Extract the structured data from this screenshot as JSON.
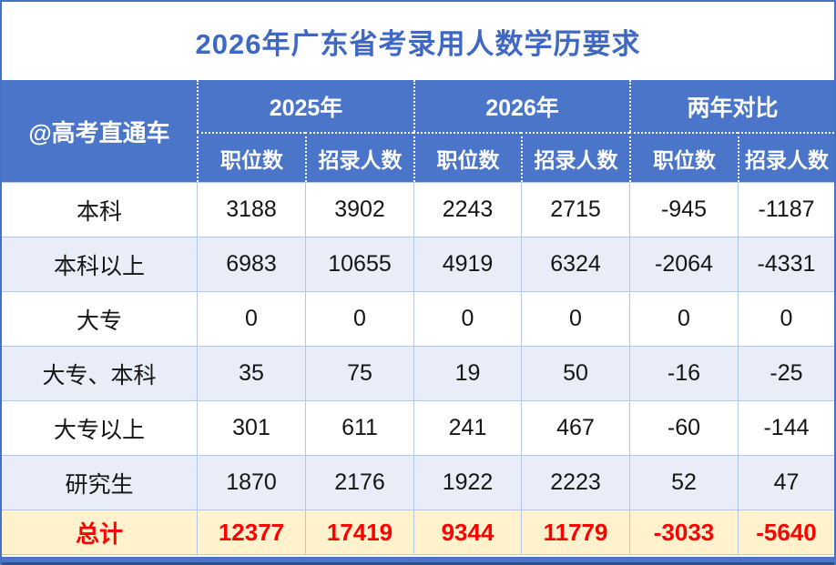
{
  "title": "2026年广东省考录用人数学历要求",
  "colors": {
    "header_bg": "#4A75C9",
    "title_text": "#3E68C3",
    "alt_row_bg": "#E9EDF7",
    "total_bg": "#FFF2CC",
    "total_text": "#FE0000",
    "grid_line": "#B4C7E7",
    "outer_border": "#4472C4",
    "bottom_edge": "#30508F"
  },
  "chart_data": {
    "type": "table",
    "title": "2026年广东省考录用人数学历要求",
    "corner_label": "@高考直通车",
    "column_groups": [
      "2025年",
      "2026年",
      "两年对比"
    ],
    "sub_headers": [
      "职位数",
      "招录人数",
      "职位数",
      "招录人数",
      "职位数",
      "招录人数"
    ],
    "row_labels": [
      "本科",
      "本科以上",
      "大专",
      "大专、本科",
      "大专以上",
      "研究生"
    ],
    "rows": [
      [
        3188,
        3902,
        2243,
        2715,
        -945,
        -1187
      ],
      [
        6983,
        10655,
        4919,
        6324,
        -2064,
        -4331
      ],
      [
        0,
        0,
        0,
        0,
        0,
        0
      ],
      [
        35,
        75,
        19,
        50,
        -16,
        -25
      ],
      [
        301,
        611,
        241,
        467,
        -60,
        -144
      ],
      [
        1870,
        2176,
        1922,
        2223,
        52,
        47
      ]
    ],
    "total_label": "总计",
    "totals": [
      12377,
      17419,
      9344,
      11779,
      -3033,
      -5640
    ]
  }
}
